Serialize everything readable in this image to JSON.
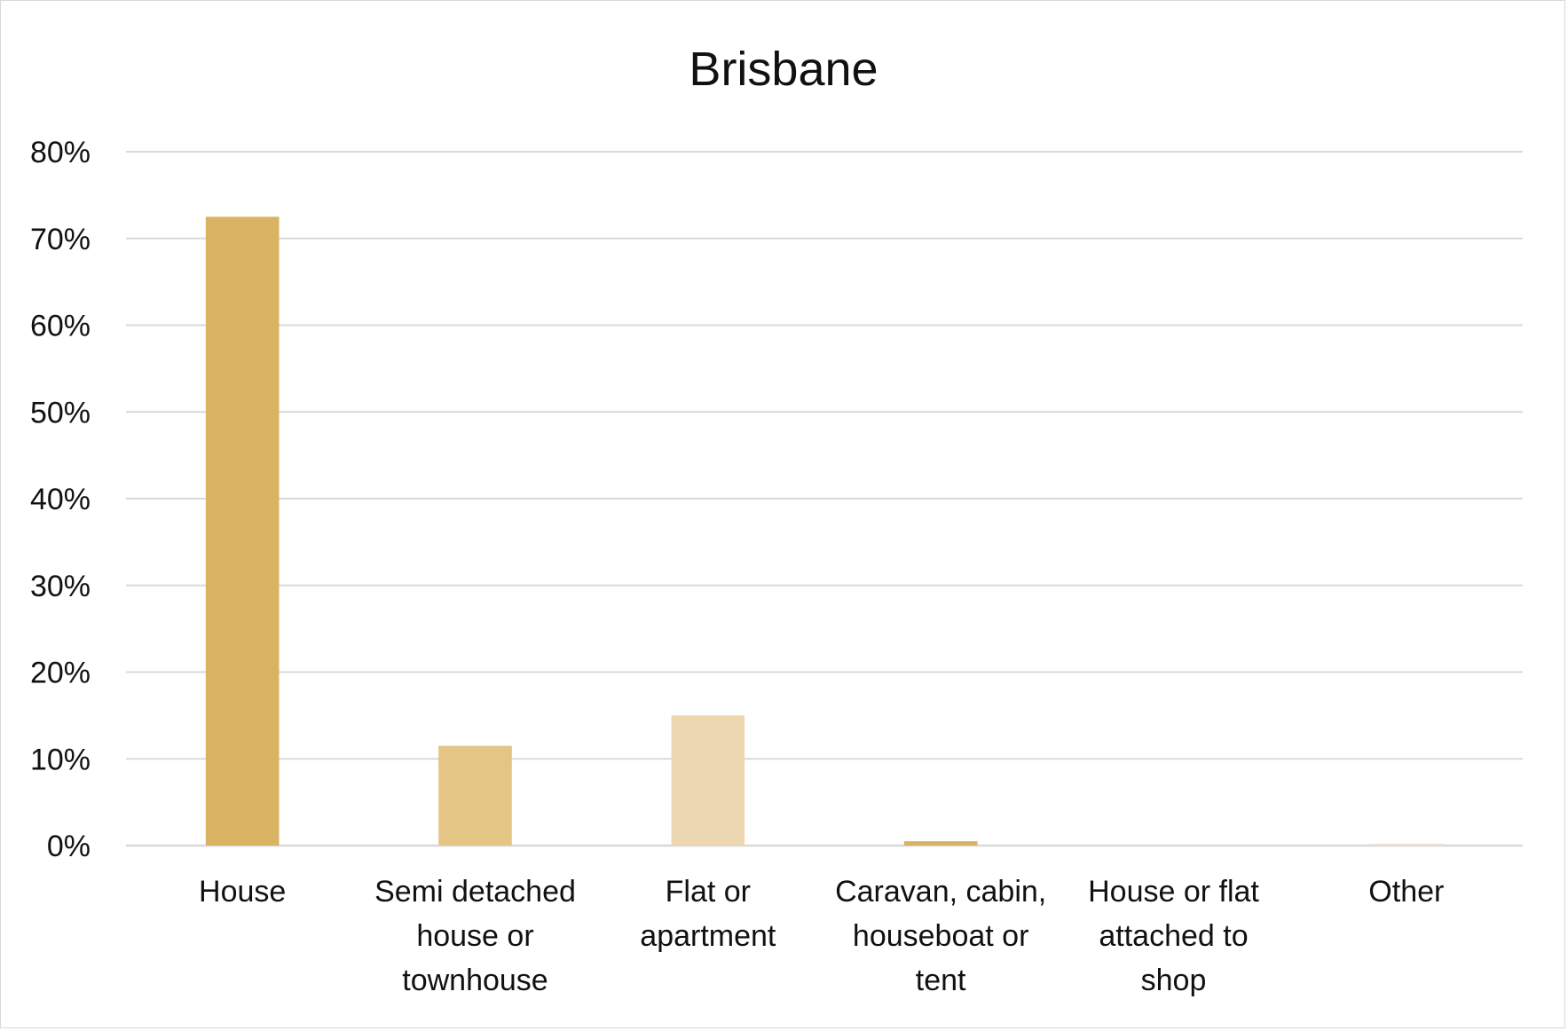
{
  "chart_data": {
    "type": "bar",
    "title": "Brisbane",
    "xlabel": "",
    "ylabel": "",
    "categories": [
      [
        "House"
      ],
      [
        "Semi detached",
        "house or",
        "townhouse"
      ],
      [
        "Flat or",
        "apartment"
      ],
      [
        "Caravan, cabin,",
        "houseboat or",
        "tent"
      ],
      [
        "House or flat",
        "attached to",
        "shop"
      ],
      [
        "Other"
      ]
    ],
    "values": [
      72.5,
      11.5,
      15.0,
      0.5,
      0.0,
      0.2
    ],
    "bar_colors": [
      "#d9b263",
      "#e4c585",
      "#edd7b0",
      "#d9b263",
      "#d9b263",
      "#ede2c9"
    ],
    "ylim": [
      0,
      80
    ],
    "yticks": [
      0,
      10,
      20,
      30,
      40,
      50,
      60,
      70,
      80
    ],
    "ytick_labels": [
      "0%",
      "10%",
      "20%",
      "30%",
      "40%",
      "50%",
      "60%",
      "70%",
      "80%"
    ],
    "grid": true,
    "legend": "none",
    "colors": {
      "gridline": "#d9d9d9",
      "axis": "#d9d9d9",
      "text": "#111111"
    }
  }
}
